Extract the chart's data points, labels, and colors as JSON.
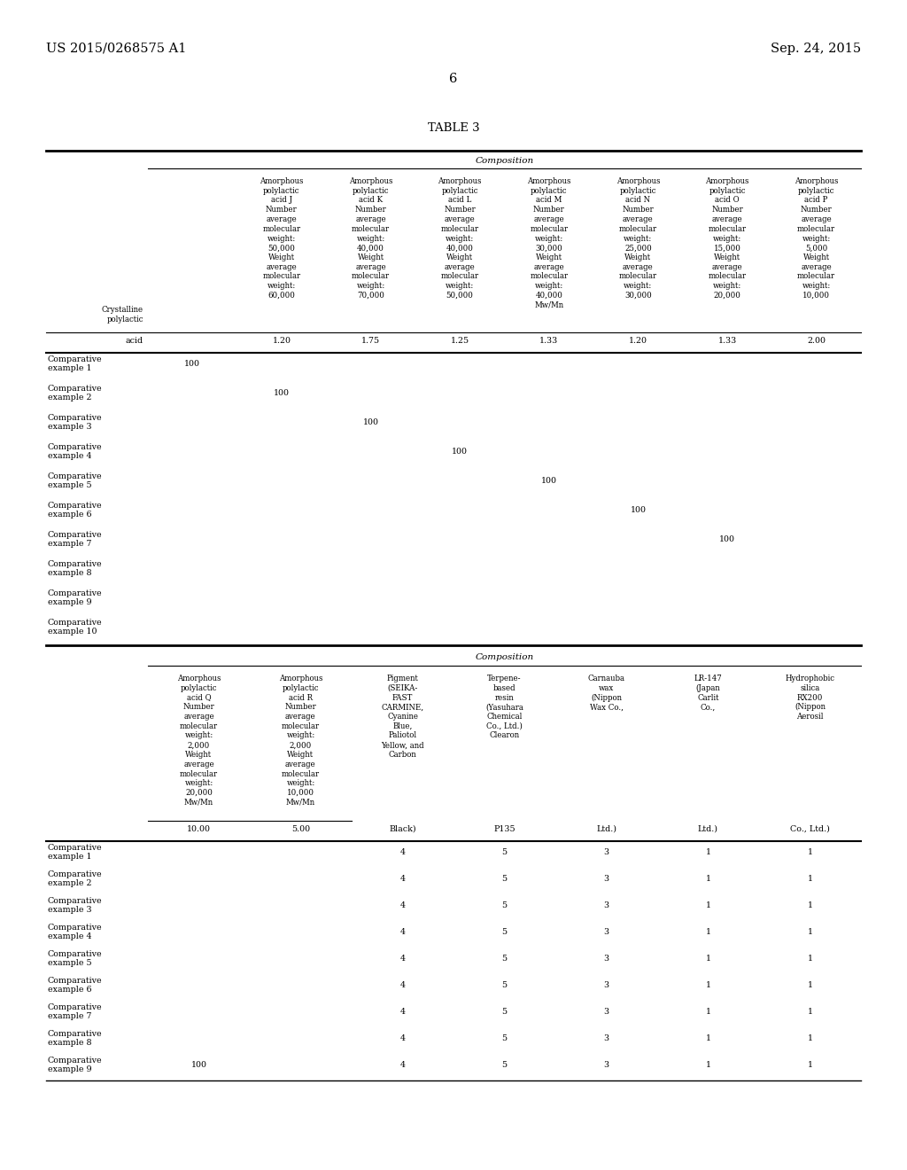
{
  "page_number": "6",
  "header_left": "US 2015/0268575 A1",
  "header_right": "Sep. 24, 2015",
  "table_title": "TABLE 3",
  "background_color": "#ffffff",
  "text_color": "#000000",
  "table1": {
    "composition_label": "Composition",
    "mwmn_row": [
      "1.20",
      "1.75",
      "1.25",
      "1.33",
      "1.20",
      "1.33",
      "2.00"
    ],
    "rows": [
      [
        "Comparative\nexample 1",
        "100",
        "",
        "",
        "",
        "",
        "",
        ""
      ],
      [
        "Comparative\nexample 2",
        "",
        "100",
        "",
        "",
        "",
        "",
        ""
      ],
      [
        "Comparative\nexample 3",
        "",
        "",
        "100",
        "",
        "",
        "",
        ""
      ],
      [
        "Comparative\nexample 4",
        "",
        "",
        "",
        "100",
        "",
        "",
        ""
      ],
      [
        "Comparative\nexample 5",
        "",
        "",
        "",
        "",
        "100",
        "",
        ""
      ],
      [
        "Comparative\nexample 6",
        "",
        "",
        "",
        "",
        "",
        "100",
        ""
      ],
      [
        "Comparative\nexample 7",
        "",
        "",
        "",
        "",
        "",
        "",
        "100"
      ],
      [
        "Comparative\nexample 8",
        "",
        "",
        "",
        "",
        "",
        "",
        ""
      ],
      [
        "Comparative\nexample 9",
        "",
        "",
        "",
        "",
        "",
        "",
        ""
      ],
      [
        "Comparative\nexample 10",
        "",
        "",
        "",
        "",
        "",
        "",
        ""
      ]
    ]
  },
  "table2": {
    "composition_label": "Composition",
    "mwmn_row": [
      "10.00",
      "5.00",
      "Black)",
      "P135",
      "Ltd.)",
      "Ltd.)",
      "Co., Ltd.)"
    ],
    "rows": [
      [
        "Comparative\nexample 1",
        "",
        "",
        "4",
        "5",
        "3",
        "1",
        "1"
      ],
      [
        "Comparative\nexample 2",
        "",
        "",
        "4",
        "5",
        "3",
        "1",
        "1"
      ],
      [
        "Comparative\nexample 3",
        "",
        "",
        "4",
        "5",
        "3",
        "1",
        "1"
      ],
      [
        "Comparative\nexample 4",
        "",
        "",
        "4",
        "5",
        "3",
        "1",
        "1"
      ],
      [
        "Comparative\nexample 5",
        "",
        "",
        "4",
        "5",
        "3",
        "1",
        "1"
      ],
      [
        "Comparative\nexample 6",
        "",
        "",
        "4",
        "5",
        "3",
        "1",
        "1"
      ],
      [
        "Comparative\nexample 7",
        "",
        "",
        "4",
        "5",
        "3",
        "1",
        "1"
      ],
      [
        "Comparative\nexample 8",
        "",
        "",
        "4",
        "5",
        "3",
        "1",
        "1"
      ],
      [
        "Comparative\nexample 9",
        "100",
        "",
        "4",
        "5",
        "3",
        "1",
        "1"
      ]
    ]
  }
}
